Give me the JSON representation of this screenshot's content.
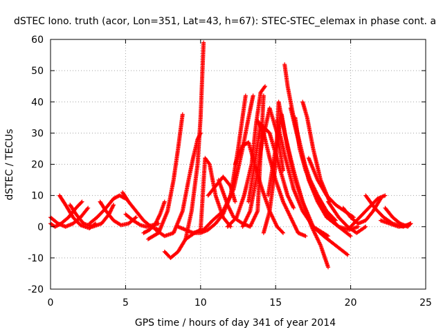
{
  "chart_data": {
    "type": "scatter",
    "title": "dSTEC Iono. truth (acor, Lon=351, Lat=43, h=67): STEC-STEC_elemax in phase cont. a",
    "xlabel": "GPS time / hours of day 341 of year 2014",
    "ylabel": "dSTEC  / TECUs",
    "xlim": [
      0,
      25
    ],
    "ylim": [
      -20,
      60
    ],
    "xticks": [
      0,
      5,
      10,
      15,
      20,
      25
    ],
    "yticks": [
      -20,
      -10,
      0,
      10,
      20,
      30,
      40,
      50,
      60
    ],
    "grid": true,
    "marker": "plus",
    "color": "#ff0000",
    "series": [
      {
        "x": [
          0.0,
          0.5,
          1.0,
          1.5,
          2.0,
          2.5
        ],
        "y": [
          3,
          1,
          0,
          1,
          3,
          6
        ]
      },
      {
        "x": [
          0.0,
          0.3,
          0.7,
          1.2,
          1.7,
          2.1
        ],
        "y": [
          1,
          0,
          1,
          3,
          6,
          8
        ]
      },
      {
        "x": [
          0.6,
          1.0,
          1.5,
          2.0,
          2.6,
          3.0
        ],
        "y": [
          10,
          7,
          3,
          0.5,
          -0.5,
          1
        ]
      },
      {
        "x": [
          1.3,
          1.7,
          2.2,
          2.8,
          3.4,
          3.9,
          4.2
        ],
        "y": [
          7,
          4,
          1,
          0,
          1,
          4,
          7
        ]
      },
      {
        "x": [
          2.6,
          3.1,
          3.7,
          4.2,
          4.6,
          5.0
        ],
        "y": [
          1,
          3,
          6,
          9,
          10,
          9
        ]
      },
      {
        "x": [
          3.3,
          3.7,
          4.2,
          4.7,
          5.2,
          5.7
        ],
        "y": [
          8,
          5,
          2,
          0.5,
          1,
          3
        ]
      },
      {
        "x": [
          4.8,
          5.2,
          5.7,
          6.2,
          6.7,
          7.2
        ],
        "y": [
          11,
          8,
          5,
          2,
          0,
          -1
        ]
      },
      {
        "x": [
          5.0,
          5.5,
          6.0,
          6.4,
          6.8,
          7.2
        ],
        "y": [
          4,
          2,
          0.5,
          0,
          0.5,
          1
        ]
      },
      {
        "x": [
          6.2,
          6.6,
          7.0,
          7.3,
          7.6
        ],
        "y": [
          -2,
          -1,
          1,
          4,
          8
        ]
      },
      {
        "x": [
          6.5,
          7.2,
          7.8,
          8.2,
          8.5,
          8.8
        ],
        "y": [
          -4,
          -2,
          5,
          15,
          25,
          36
        ]
      },
      {
        "x": [
          7.6,
          8.0,
          8.5,
          9.0,
          9.4,
          9.8,
          10.0,
          10.2
        ],
        "y": [
          -8,
          -10,
          -8,
          -4,
          5,
          20,
          35,
          59
        ]
      },
      {
        "x": [
          7.0,
          7.6,
          8.2,
          8.8,
          9.2,
          9.5,
          9.8,
          10.0
        ],
        "y": [
          -1,
          -3,
          -2,
          5,
          15,
          22,
          28,
          30
        ]
      },
      {
        "x": [
          9.0,
          9.6,
          10.0,
          10.3,
          10.6,
          11.0,
          11.5,
          12.0
        ],
        "y": [
          -4,
          -2,
          -1,
          22,
          20,
          10,
          3,
          0
        ]
      },
      {
        "x": [
          8.5,
          9.0,
          9.5,
          10.0,
          10.5,
          11.0,
          11.5,
          12.0,
          12.5,
          13.0
        ],
        "y": [
          0,
          -1,
          -2,
          -2,
          -1,
          1,
          4,
          10,
          25,
          42
        ]
      },
      {
        "x": [
          9.5,
          10.2,
          10.8,
          11.5,
          12.2,
          12.8,
          13.2,
          13.5
        ],
        "y": [
          -2,
          -1,
          2,
          5,
          12,
          25,
          35,
          42
        ]
      },
      {
        "x": [
          10.5,
          11.0,
          11.5,
          12.0,
          12.3
        ],
        "y": [
          10,
          13,
          16,
          13,
          8
        ]
      },
      {
        "x": [
          11.2,
          11.8,
          12.2,
          12.8,
          13.3,
          13.8,
          14.2
        ],
        "y": [
          15,
          7,
          3,
          1,
          0,
          5,
          42
        ]
      },
      {
        "x": [
          11.8,
          12.4,
          12.9,
          13.4,
          13.7,
          14.0,
          14.3
        ],
        "y": [
          0,
          3,
          10,
          20,
          33,
          43,
          45
        ]
      },
      {
        "x": [
          12.3,
          12.8,
          13.2,
          13.6,
          14.1,
          14.6,
          15.1,
          15.5
        ],
        "y": [
          20,
          26,
          27,
          20,
          12,
          5,
          0,
          -2
        ]
      },
      {
        "x": [
          12.8,
          13.3,
          13.7,
          14.1,
          14.6,
          15.1,
          15.5
        ],
        "y": [
          0,
          5,
          15,
          27,
          38,
          30,
          18
        ]
      },
      {
        "x": [
          13.2,
          13.6,
          14.0,
          14.6,
          15.2,
          15.8,
          16.2
        ],
        "y": [
          8,
          20,
          33,
          30,
          20,
          10,
          6
        ]
      },
      {
        "x": [
          13.8,
          14.2,
          14.6,
          15.0,
          15.5,
          16.0,
          16.5,
          17.0
        ],
        "y": [
          34,
          30,
          22,
          15,
          8,
          3,
          -2,
          -3
        ]
      },
      {
        "x": [
          14.2,
          14.6,
          15.0,
          15.2,
          15.6,
          16.2,
          16.8,
          17.5,
          18.5
        ],
        "y": [
          -2,
          5,
          20,
          40,
          30,
          18,
          8,
          0,
          -3
        ]
      },
      {
        "x": [
          14.5,
          15.0,
          15.4,
          15.8,
          16.3,
          16.8,
          17.4,
          18.0,
          18.5
        ],
        "y": [
          10,
          25,
          36,
          25,
          15,
          8,
          0,
          -6,
          -13
        ]
      },
      {
        "x": [
          15.1,
          15.6,
          16.2,
          16.8,
          17.5,
          18.2,
          19.0,
          19.8
        ],
        "y": [
          34,
          23,
          12,
          5,
          0,
          -3,
          -6,
          -9
        ]
      },
      {
        "x": [
          15.6,
          15.8,
          16.2,
          16.7,
          17.2,
          17.8,
          18.4,
          19.2,
          20.0
        ],
        "y": [
          52,
          45,
          35,
          25,
          15,
          8,
          3,
          0,
          -3
        ]
      },
      {
        "x": [
          16.0,
          16.4,
          16.8,
          17.3,
          17.8,
          18.4,
          19.0
        ],
        "y": [
          38,
          30,
          22,
          15,
          10,
          5,
          2
        ]
      },
      {
        "x": [
          16.3,
          16.6,
          17.0,
          17.5,
          18.0,
          18.6,
          19.2,
          19.9,
          20.5
        ],
        "y": [
          35,
          25,
          18,
          12,
          7,
          3,
          0,
          -1,
          0
        ]
      },
      {
        "x": [
          16.8,
          17.1,
          17.5,
          18.0,
          18.6
        ],
        "y": [
          40,
          35,
          25,
          15,
          8
        ]
      },
      {
        "x": [
          17.2,
          17.8,
          18.4,
          19.0,
          19.6,
          20.2
        ],
        "y": [
          22,
          15,
          10,
          7,
          5,
          3
        ]
      },
      {
        "x": [
          18.5,
          19.2,
          19.8,
          20.4,
          21.0
        ],
        "y": [
          8,
          3,
          0,
          -2,
          0
        ]
      },
      {
        "x": [
          19.5,
          20.0,
          20.5,
          21.0,
          21.5,
          22.0
        ],
        "y": [
          6,
          3,
          1,
          2,
          5,
          9
        ]
      },
      {
        "x": [
          20.0,
          20.6,
          21.2,
          21.8,
          22.3
        ],
        "y": [
          0,
          3,
          6,
          9,
          10
        ]
      },
      {
        "x": [
          21.0,
          21.6,
          22.2,
          22.8,
          23.5,
          24.0
        ],
        "y": [
          10,
          6,
          3,
          1,
          0,
          1
        ]
      },
      {
        "x": [
          22.3,
          22.8,
          23.3,
          23.8,
          24.0
        ],
        "y": [
          6,
          3,
          1,
          0,
          1
        ]
      },
      {
        "x": [
          22.0,
          22.6,
          23.2,
          23.8,
          24.0
        ],
        "y": [
          2,
          1,
          0,
          0.5,
          1
        ]
      }
    ]
  }
}
